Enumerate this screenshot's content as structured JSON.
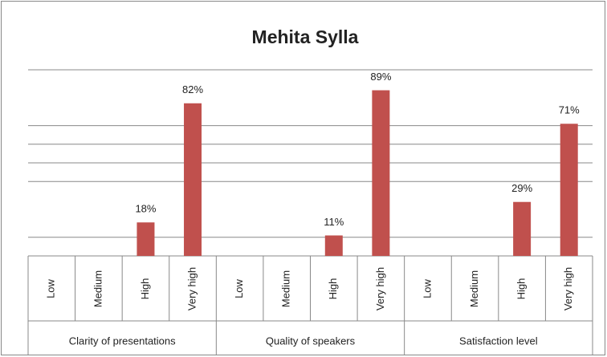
{
  "chart_data": {
    "type": "bar",
    "title": "Mehita Sylla",
    "categories": [
      "Low",
      "Medium",
      "High",
      "Very high",
      "Low",
      "Medium",
      "High",
      "Very high",
      "Low",
      "Medium",
      "High",
      "Very high"
    ],
    "groups": [
      "Clarity of presentations",
      "Quality of speakers",
      "Satisfaction level"
    ],
    "values": [
      0,
      0,
      18,
      82,
      0,
      0,
      11,
      89,
      0,
      0,
      29,
      71
    ],
    "value_labels": [
      null,
      null,
      "18%",
      "82%",
      null,
      null,
      "11%",
      "89%",
      null,
      null,
      "29%",
      "71%"
    ],
    "color": "#c0504d",
    "ylim": [
      0,
      100
    ],
    "grid_lines": [
      10,
      40,
      50,
      60,
      70,
      100
    ]
  }
}
